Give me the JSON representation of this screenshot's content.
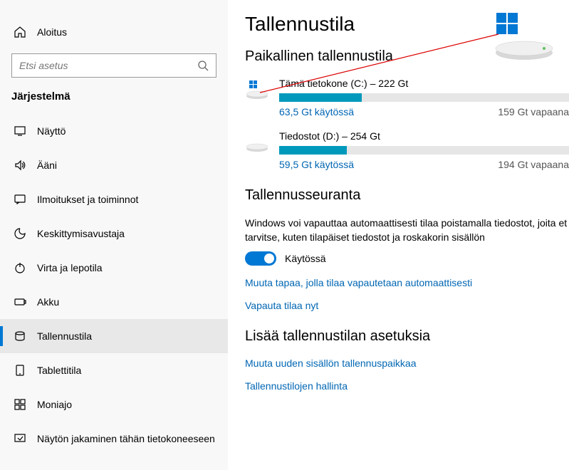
{
  "sidebar": {
    "home": "Aloitus",
    "search_placeholder": "Etsi asetus",
    "section": "Järjestelmä",
    "items": [
      {
        "label": "Näyttö"
      },
      {
        "label": "Ääni"
      },
      {
        "label": "Ilmoitukset ja toiminnot"
      },
      {
        "label": "Keskittymisavustaja"
      },
      {
        "label": "Virta ja lepotila"
      },
      {
        "label": "Akku"
      },
      {
        "label": "Tallennustila"
      },
      {
        "label": "Tablettitila"
      },
      {
        "label": "Moniajo"
      },
      {
        "label": "Näytön jakaminen tähän tietokoneeseen"
      }
    ]
  },
  "main": {
    "title": "Tallennustila",
    "local_storage_head": "Paikallinen tallennustila",
    "drives": [
      {
        "title": "Tämä tietokone (C:) – 222 Gt",
        "used": "63,5 Gt käytössä",
        "free": "159 Gt vapaana",
        "fill_pct": 28.6,
        "fill_color": "#0099bc",
        "is_system": true
      },
      {
        "title": "Tiedostot (D:) – 254 Gt",
        "used": "59,5 Gt käytössä",
        "free": "194 Gt vapaana",
        "fill_pct": 23.4,
        "fill_color": "#0099bc",
        "is_system": false
      }
    ],
    "sense_head": "Tallennusseuranta",
    "sense_desc": "Windows voi vapauttaa automaattisesti tilaa poistamalla tiedostot, joita et tarvitse, kuten tilapäiset tiedostot ja roskakorin sisällön",
    "toggle_label": "Käytössä",
    "link_change": "Muuta tapaa, jolla tilaa vapautetaan automaattisesti",
    "link_free": "Vapauta tilaa nyt",
    "more_head": "Lisää tallennustilan asetuksia",
    "link_savepath": "Muuta uuden sisällön tallennuspaikkaa",
    "link_spaces": "Tallennustilojen hallinta"
  },
  "colors": {
    "accent": "#0078d4",
    "link": "#0066b3",
    "bar_bg": "#e6e6e6"
  }
}
